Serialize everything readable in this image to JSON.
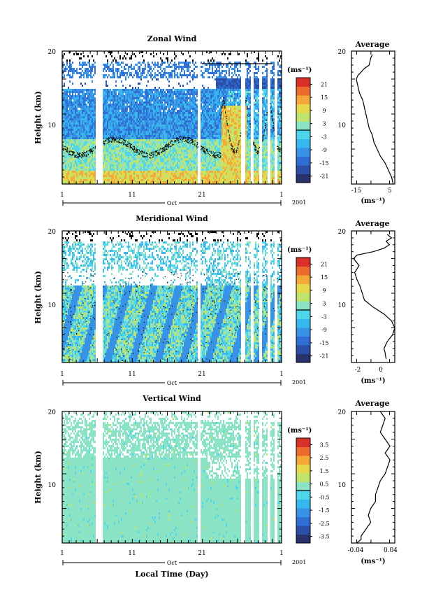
{
  "figure": {
    "xlabel": "Local Time (Day)",
    "year": "2001",
    "month": "Oct"
  },
  "chart_data": [
    {
      "type": "heatmap",
      "title": "Zonal Wind",
      "xlabel": "Oct",
      "ylabel": "Height (km)",
      "x_ticks": [
        "1",
        "11",
        "21",
        "1"
      ],
      "y_ticks": [
        "10",
        "20"
      ],
      "ylim": [
        1,
        20
      ],
      "colorbar": {
        "unit": "(ms⁻¹)",
        "ticks": [
          "21",
          "15",
          "9",
          "3",
          "-3",
          "-9",
          "-15",
          "-21"
        ],
        "range": [
          -24,
          24
        ]
      },
      "pattern": "zonal"
    },
    {
      "type": "line",
      "title": "Average",
      "ylim": [
        1,
        20
      ],
      "xlim": [
        -20,
        7
      ],
      "x_ticks": [
        "-15",
        "5"
      ],
      "y_ticks": [
        "10",
        "20"
      ],
      "xlabel": "(ms⁻¹)",
      "points": [
        [
          6,
          1
        ],
        [
          5,
          2
        ],
        [
          3,
          3
        ],
        [
          1,
          4
        ],
        [
          -2,
          5
        ],
        [
          -4,
          6
        ],
        [
          -6,
          7
        ],
        [
          -7,
          8
        ],
        [
          -9,
          9
        ],
        [
          -10,
          10
        ],
        [
          -11,
          11
        ],
        [
          -12,
          12
        ],
        [
          -13,
          13
        ],
        [
          -15,
          14
        ],
        [
          -16,
          15
        ],
        [
          -17,
          16
        ],
        [
          -16,
          16.5
        ],
        [
          -14,
          17
        ],
        [
          -12,
          17.5
        ],
        [
          -9,
          18
        ],
        [
          -8,
          19
        ],
        [
          -7,
          19.5
        ]
      ]
    },
    {
      "type": "heatmap",
      "title": "Meridional Wind",
      "xlabel": "Oct",
      "ylabel": "Height (km)",
      "x_ticks": [
        "1",
        "11",
        "21",
        "1"
      ],
      "y_ticks": [
        "10",
        "20"
      ],
      "ylim": [
        1,
        20
      ],
      "colorbar": {
        "unit": "(ms⁻¹)",
        "ticks": [
          "21",
          "15",
          "9",
          "3",
          "-3",
          "-9",
          "-15",
          "-21"
        ],
        "range": [
          -24,
          24
        ]
      },
      "pattern": "meridional"
    },
    {
      "type": "line",
      "title": "Average",
      "ylim": [
        1,
        20
      ],
      "xlim": [
        -3,
        1
      ],
      "x_ticks": [
        "-2",
        "0"
      ],
      "y_ticks": [
        "10",
        "20"
      ],
      "xlabel": "(ms⁻¹)",
      "points": [
        [
          0.2,
          1.5
        ],
        [
          0.1,
          2.5
        ],
        [
          0,
          3
        ],
        [
          0.3,
          4
        ],
        [
          0.8,
          5
        ],
        [
          1,
          6
        ],
        [
          0.7,
          7
        ],
        [
          0,
          8
        ],
        [
          -1,
          9
        ],
        [
          -1.8,
          10
        ],
        [
          -2,
          11
        ],
        [
          -2.2,
          12
        ],
        [
          -2.5,
          13
        ],
        [
          -2.7,
          14
        ],
        [
          -2.3,
          15
        ],
        [
          -2.8,
          16
        ],
        [
          -2.5,
          16.5
        ],
        [
          -1,
          17
        ],
        [
          0,
          17.5
        ],
        [
          0.5,
          18
        ],
        [
          0.2,
          18.5
        ],
        [
          0.7,
          19
        ],
        [
          0.3,
          19.5
        ]
      ]
    },
    {
      "type": "heatmap",
      "title": "Vertical Wind",
      "xlabel": "Oct",
      "ylabel": "Height (km)",
      "x_ticks": [
        "1",
        "11",
        "21",
        "1"
      ],
      "y_ticks": [
        "10",
        "20"
      ],
      "ylim": [
        1,
        20
      ],
      "colorbar": {
        "unit": "(ms⁻¹)",
        "ticks": [
          "3.5",
          "2.5",
          "1.5",
          "0.5",
          "-0.5",
          "-1.5",
          "-2.5",
          "-3.5"
        ],
        "range": [
          -4,
          4
        ]
      },
      "pattern": "vertical"
    },
    {
      "type": "line",
      "title": "Average",
      "ylim": [
        1,
        20
      ],
      "xlim": [
        -0.05,
        0.04
      ],
      "x_ticks": [
        "-0.04",
        "0.04"
      ],
      "y_ticks": [
        "10",
        "20"
      ],
      "xlabel": "(ms⁻¹)",
      "points": [
        [
          -0.04,
          1
        ],
        [
          -0.03,
          1.5
        ],
        [
          -0.03,
          2
        ],
        [
          -0.02,
          3
        ],
        [
          -0.01,
          4
        ],
        [
          -0.015,
          5
        ],
        [
          -0.01,
          6
        ],
        [
          0,
          7
        ],
        [
          0,
          8
        ],
        [
          0.005,
          9
        ],
        [
          0.01,
          10
        ],
        [
          0.02,
          11
        ],
        [
          0.025,
          12
        ],
        [
          0.03,
          13
        ],
        [
          0.02,
          14
        ],
        [
          0.03,
          15
        ],
        [
          0.02,
          16
        ],
        [
          0.01,
          17
        ],
        [
          0.015,
          18
        ],
        [
          0.02,
          19
        ],
        [
          0.01,
          20
        ]
      ]
    }
  ]
}
